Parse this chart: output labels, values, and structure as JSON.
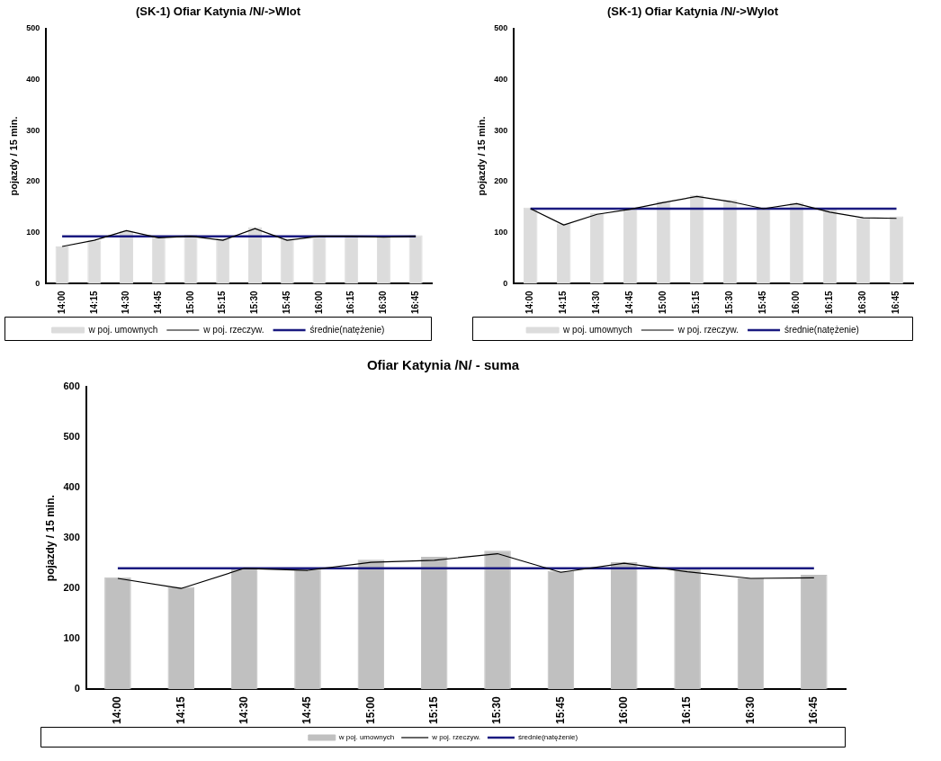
{
  "chart_data": [
    {
      "type": "bar",
      "title": "(SK-1) Ofiar Katynia /N/->Wlot",
      "ylabel": "pojazdy / 15 min.",
      "categories": [
        "14:00",
        "14:15",
        "14:30",
        "14:45",
        "15:00",
        "15:15",
        "15:30",
        "15:45",
        "16:00",
        "16:15",
        "16:30",
        "16:45"
      ],
      "ylim": [
        0,
        500
      ],
      "yticks": [
        0,
        100,
        200,
        300,
        400,
        500
      ],
      "grid": false,
      "legend": "bottom",
      "marker": "none",
      "series": [
        {
          "name": "w poj. umownych",
          "color": "#dcdcdc",
          "values": [
            73,
            85,
            104,
            92,
            96,
            89,
            111,
            88,
            93,
            93,
            92,
            95
          ]
        },
        {
          "type": "line",
          "name": "w poj. rzeczyw.",
          "color": "#000000",
          "values": [
            73,
            85,
            104,
            90,
            93,
            85,
            108,
            85,
            93,
            93,
            91,
            93
          ]
        },
        {
          "type": "line",
          "name": "średnie(natężenie)",
          "color": "#1a1a80",
          "values": [
            93,
            93,
            93,
            93,
            93,
            93,
            93,
            93,
            93,
            93,
            93,
            93
          ]
        }
      ]
    },
    {
      "type": "bar",
      "title": "(SK-1) Ofiar Katynia /N/->Wylot",
      "ylabel": "pojazdy / 15 min.",
      "categories": [
        "14:00",
        "14:15",
        "14:30",
        "14:45",
        "15:00",
        "15:15",
        "15:30",
        "15:45",
        "16:00",
        "16:15",
        "16:30",
        "16:45"
      ],
      "ylim": [
        0,
        500
      ],
      "yticks": [
        0,
        100,
        200,
        300,
        400,
        500
      ],
      "grid": false,
      "legend": "bottom",
      "marker": "none",
      "series": [
        {
          "name": "w poj. umownych",
          "color": "#dcdcdc",
          "values": [
            149,
            118,
            138,
            147,
            161,
            174,
            164,
            147,
            159,
            145,
            128,
            132
          ]
        },
        {
          "type": "line",
          "name": "w poj. rzeczyw.",
          "color": "#000000",
          "values": [
            147,
            115,
            136,
            146,
            159,
            171,
            161,
            147,
            157,
            140,
            129,
            128
          ]
        },
        {
          "type": "line",
          "name": "średnie(natężenie)",
          "color": "#1a1a80",
          "values": [
            147,
            147,
            147,
            147,
            147,
            147,
            147,
            147,
            147,
            147,
            147,
            147
          ]
        }
      ]
    },
    {
      "type": "bar",
      "title": "Ofiar Katynia /N/ - suma",
      "ylabel": "pojazdy / 15 min.",
      "categories": [
        "14:00",
        "14:15",
        "14:30",
        "14:45",
        "15:00",
        "15:15",
        "15:30",
        "15:45",
        "16:00",
        "16:15",
        "16:30",
        "16:45"
      ],
      "ylim": [
        0,
        600
      ],
      "yticks": [
        0,
        100,
        200,
        300,
        400,
        500,
        600
      ],
      "grid": false,
      "legend": "bottom",
      "marker": "none",
      "series": [
        {
          "name": "w poj. umownych",
          "color": "#c0c0c0",
          "values": [
            222,
            203,
            242,
            239,
            257,
            263,
            275,
            235,
            252,
            238,
            220,
            227
          ]
        },
        {
          "type": "line",
          "name": "w poj. rzeczyw.",
          "color": "#000000",
          "values": [
            220,
            200,
            240,
            236,
            252,
            256,
            269,
            232,
            250,
            233,
            220,
            221
          ]
        },
        {
          "type": "line",
          "name": "średnie(natężenie)",
          "color": "#1a1a80",
          "values": [
            240,
            240,
            240,
            240,
            240,
            240,
            240,
            240,
            240,
            240,
            240,
            240
          ]
        }
      ]
    }
  ]
}
